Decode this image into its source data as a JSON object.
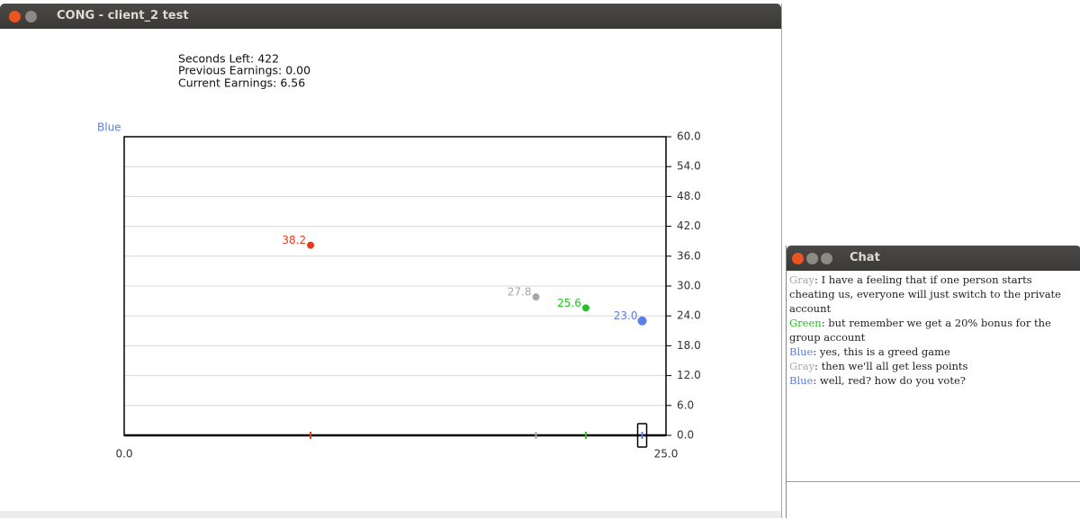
{
  "main_window": {
    "title": "CONG - client_2 test",
    "status": {
      "seconds_left": "Seconds Left: 422",
      "previous_earnings": "Previous Earnings: 0.00",
      "current_earnings": "Current Earnings: 6.56"
    }
  },
  "chart_data": {
    "type": "scatter",
    "player_label": "Blue",
    "player_color": "#5b7ee8",
    "x": [
      8.6,
      19.0,
      21.3,
      23.9
    ],
    "values": [
      38.2,
      27.8,
      25.6,
      23.0
    ],
    "value_labels": [
      "38.2",
      "27.8",
      "25.6",
      "23.0"
    ],
    "colors": [
      "#e8391d",
      "#a8a8a8",
      "#22c322",
      "#5b7ee8"
    ],
    "xlim": [
      0,
      25
    ],
    "xticks": [
      {
        "value": 0,
        "label": "0.0"
      },
      {
        "value": 25,
        "label": "25.0"
      }
    ],
    "ylim": [
      0,
      60
    ],
    "yticks": [
      {
        "value": 0,
        "label": "0.0"
      },
      {
        "value": 6,
        "label": "6.0"
      },
      {
        "value": 12,
        "label": "12.0"
      },
      {
        "value": 18,
        "label": "18.0"
      },
      {
        "value": 24,
        "label": "24.0"
      },
      {
        "value": 30,
        "label": "30.0"
      },
      {
        "value": 36,
        "label": "36.0"
      },
      {
        "value": 42,
        "label": "42.0"
      },
      {
        "value": 48,
        "label": "48.0"
      },
      {
        "value": 54,
        "label": "54.0"
      },
      {
        "value": 60,
        "label": "60.0"
      }
    ],
    "grid": true
  },
  "chat_window": {
    "title": "Chat",
    "messages": [
      {
        "speaker": "Gray",
        "color": "#a8a8a8",
        "text": ": I have a feeling that if one person starts cheating us, everyone will just switch to the private account"
      },
      {
        "speaker": "Green",
        "color": "#22c322",
        "text": ": but remember we get a 20% bonus for the group account"
      },
      {
        "speaker": "Blue",
        "color": "#5b7ee8",
        "text": ": yes, this is a greed game"
      },
      {
        "speaker": "Gray",
        "color": "#a8a8a8",
        "text": ": then we'll all get less points"
      },
      {
        "speaker": "Blue",
        "color": "#5b7ee8",
        "text": ": well, red? how do you vote?"
      }
    ]
  }
}
